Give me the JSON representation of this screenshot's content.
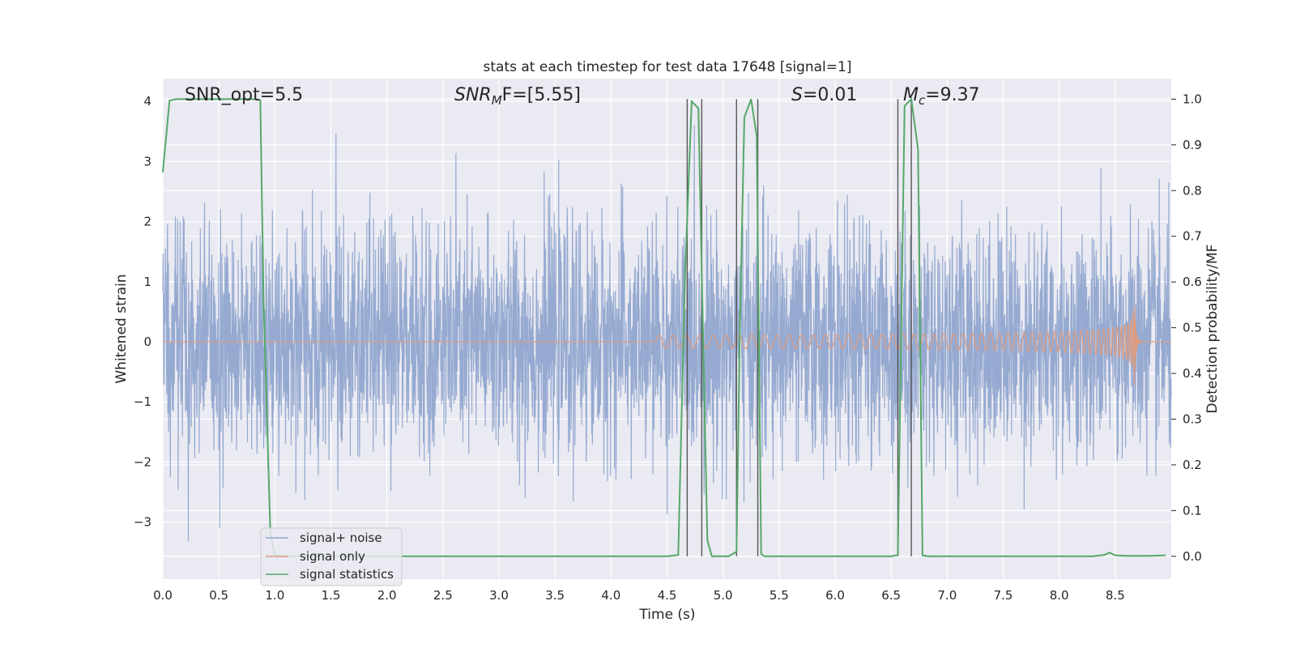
{
  "chart_data": {
    "type": "line",
    "title": "stats at each timestep for test data 17648 [signal=1]",
    "xlabel": "Time (s)",
    "ylabel_left": "Whitened strain",
    "ylabel_right": "Detection probability/MF",
    "xlim": [
      0.0,
      9.0
    ],
    "ylim_left": [
      -3.95,
      4.38
    ],
    "ylim_right": [
      -0.05,
      1.045
    ],
    "x_ticks": [
      "0.0",
      "0.5",
      "1.0",
      "1.5",
      "2.0",
      "2.5",
      "3.0",
      "3.5",
      "4.0",
      "4.5",
      "5.0",
      "5.5",
      "6.0",
      "6.5",
      "7.0",
      "7.5",
      "8.0",
      "8.5"
    ],
    "y_left_ticks": [
      "−3",
      "−2",
      "−1",
      "0",
      "1",
      "2",
      "3",
      "4"
    ],
    "y_right_ticks": [
      "0.0",
      "0.1",
      "0.2",
      "0.3",
      "0.4",
      "0.5",
      "0.6",
      "0.7",
      "0.8",
      "0.9",
      "1.0"
    ],
    "annotations": {
      "snr_opt": "SNR_opt=5.5",
      "snr_mf_base": "SNR",
      "snr_mf_sub": "M",
      "snr_mf_rest": "F=[5.55]",
      "s_base": "S",
      "s_rest": "=0.01",
      "mc_base": "M",
      "mc_sub": "c",
      "mc_rest": "=9.37"
    },
    "grid": true,
    "legend_position": "lower-left",
    "series": [
      {
        "name": "signal+ noise",
        "axis": "left",
        "color": "#91a6cf",
        "description_values": {
          "noise_std": 0.95,
          "typical_peak_abs": 2.5,
          "max_abs": 3.6
        }
      },
      {
        "name": "signal only",
        "axis": "left",
        "color": "#dd9c80",
        "chirp": {
          "start_t": 4.4,
          "merger_t": 8.67,
          "peak_amp": 0.82,
          "end_t": 8.75
        }
      },
      {
        "name": "signal statistics",
        "axis": "right",
        "color": "#55a868",
        "x": [
          0.0,
          0.06,
          0.12,
          0.2,
          0.3,
          0.4,
          0.5,
          0.6,
          0.7,
          0.8,
          0.87,
          0.9,
          0.96,
          1.0,
          1.1,
          1.5,
          2.0,
          3.0,
          4.0,
          4.5,
          4.6,
          4.66,
          4.72,
          4.78,
          4.82,
          4.86,
          4.9,
          4.96,
          5.05,
          5.12,
          5.15,
          5.19,
          5.25,
          5.3,
          5.34,
          5.37,
          5.45,
          5.5,
          6.0,
          6.5,
          6.56,
          6.62,
          6.68,
          6.74,
          6.78,
          6.84,
          7.0,
          7.5,
          8.0,
          8.3,
          8.4,
          8.45,
          8.5,
          8.6,
          8.7,
          8.8,
          8.95
        ],
        "y": [
          0.84,
          0.997,
          1.0,
          1.0,
          1.0,
          1.0,
          1.0,
          1.0,
          1.0,
          1.0,
          0.998,
          0.55,
          0.05,
          0.002,
          0.0,
          0.0,
          0.0,
          0.0,
          0.0,
          0.0,
          0.003,
          0.61,
          0.995,
          0.98,
          0.5,
          0.035,
          0.0,
          0.0,
          0.0,
          0.01,
          0.5,
          0.96,
          1.0,
          0.92,
          0.005,
          0.0,
          0.0,
          0.0,
          0.0,
          0.0,
          0.003,
          0.985,
          1.0,
          0.89,
          0.002,
          0.0,
          0.0,
          0.0,
          0.0,
          0.0,
          0.003,
          0.008,
          0.002,
          0.001,
          0.001,
          0.001,
          0.002
        ]
      }
    ],
    "threshold_crossings_x": [
      4.68,
      4.81,
      5.12,
      5.31,
      6.56,
      6.68
    ]
  }
}
